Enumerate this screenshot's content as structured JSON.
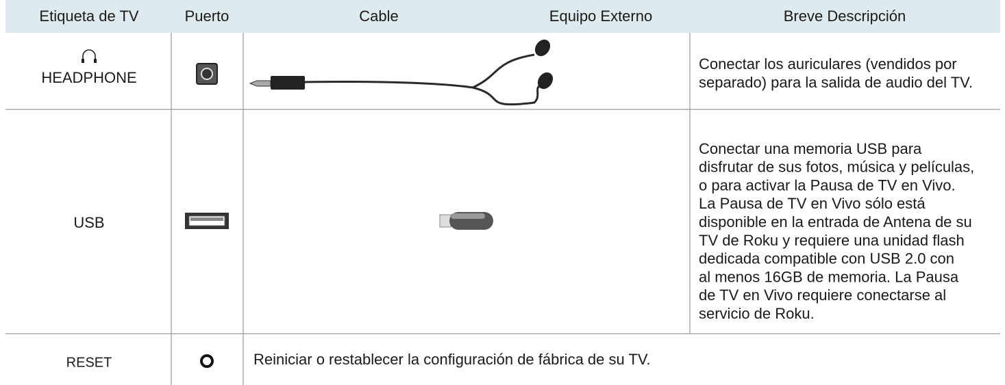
{
  "table": {
    "header": [
      "Etiqueta de TV",
      "Puerto",
      "Cable",
      "Equipo Externo",
      "Breve Descripción"
    ],
    "rows": [
      {
        "label": "HEADPHONE",
        "description": [
          "Conectar los auriculares (vendidos por",
          "separado) para la salida de audio del TV."
        ]
      },
      {
        "label": "USB",
        "description": [
          "Conectar una memoria USB para",
          "disfrutar de sus fotos, música y películas,",
          "o para activar la Pausa de TV en Vivo.",
          "La Pausa de TV en Vivo sólo está",
          "disponible en la entrada de Antena de su",
          "TV de Roku y requiere una unidad flash",
          "dedicada compatible con USB 2.0 con",
          "al menos 16GB de memoria. La Pausa",
          "de TV en Vivo requiere conectarse al",
          "servicio de Roku."
        ]
      },
      {
        "label": "RESET",
        "description": [
          "Reiniciar o restablecer la configuración de fábrica de su TV."
        ]
      }
    ]
  }
}
